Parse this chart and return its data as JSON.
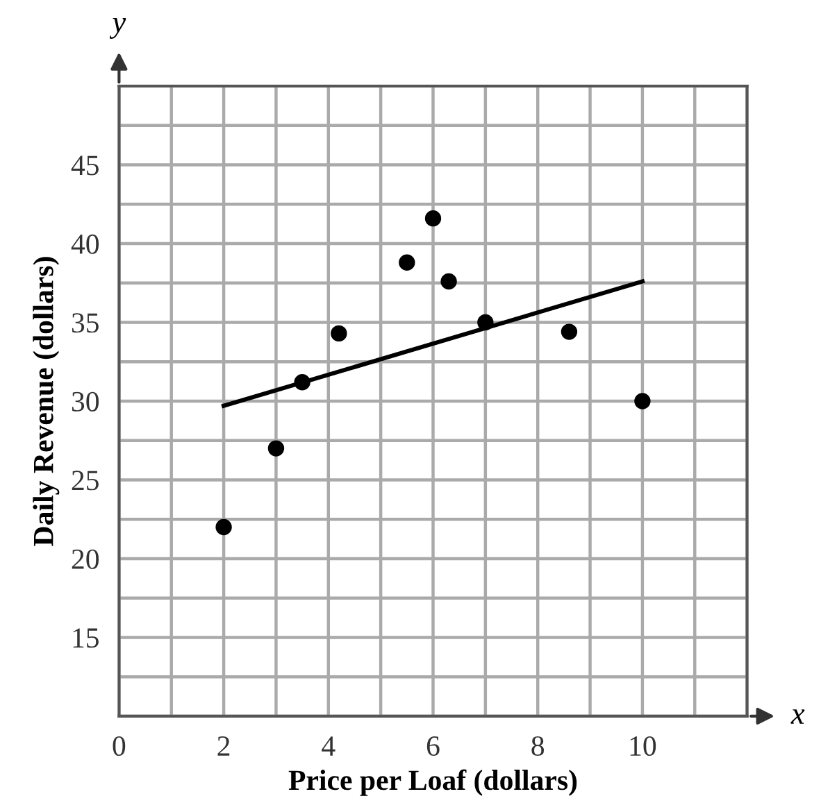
{
  "chart_data": {
    "type": "scatter",
    "xlabel": "Price per Loaf (dollars)",
    "ylabel": "Daily Revenue (dollars)",
    "annotations": [
      "x",
      "y"
    ],
    "xlim": [
      0,
      12
    ],
    "ylim": [
      10,
      50
    ],
    "xticks": [
      0,
      {
        "value": 1,
        "label": null
      },
      2,
      {
        "value": 3,
        "label": null
      },
      4,
      {
        "value": 5,
        "label": null
      },
      6,
      {
        "value": 7,
        "label": null
      },
      8,
      {
        "value": 9,
        "label": null
      },
      10,
      {
        "value": 11,
        "label": null
      },
      {
        "value": 12,
        "label": null
      }
    ],
    "yticks": [
      {
        "value": 10,
        "label": null
      },
      {
        "value": 12.5,
        "label": null
      },
      15,
      {
        "value": 17.5,
        "label": null
      },
      20,
      {
        "value": 22.5,
        "label": null
      },
      25,
      {
        "value": 27.5,
        "label": null
      },
      30,
      {
        "value": 32.5,
        "label": null
      },
      35,
      {
        "value": 37.5,
        "label": null
      },
      40,
      {
        "value": 42.5,
        "label": null
      },
      45,
      {
        "value": 47.5,
        "label": null
      },
      {
        "value": 50,
        "label": null
      }
    ],
    "grid": true,
    "series": [
      {
        "marker": "circle",
        "color": "#000000",
        "x": [
          2,
          3,
          3.5,
          4.2,
          5.5,
          6,
          6.3,
          7,
          8.6,
          10
        ],
        "values": [
          22,
          27,
          31.2,
          34.3,
          38.8,
          41.6,
          37.6,
          35,
          34.4,
          30
        ]
      },
      {
        "type": "line",
        "color": "#000000",
        "line_style": "solid",
        "x": [
          2,
          10
        ],
        "values": [
          29.7,
          37.6
        ]
      }
    ]
  }
}
